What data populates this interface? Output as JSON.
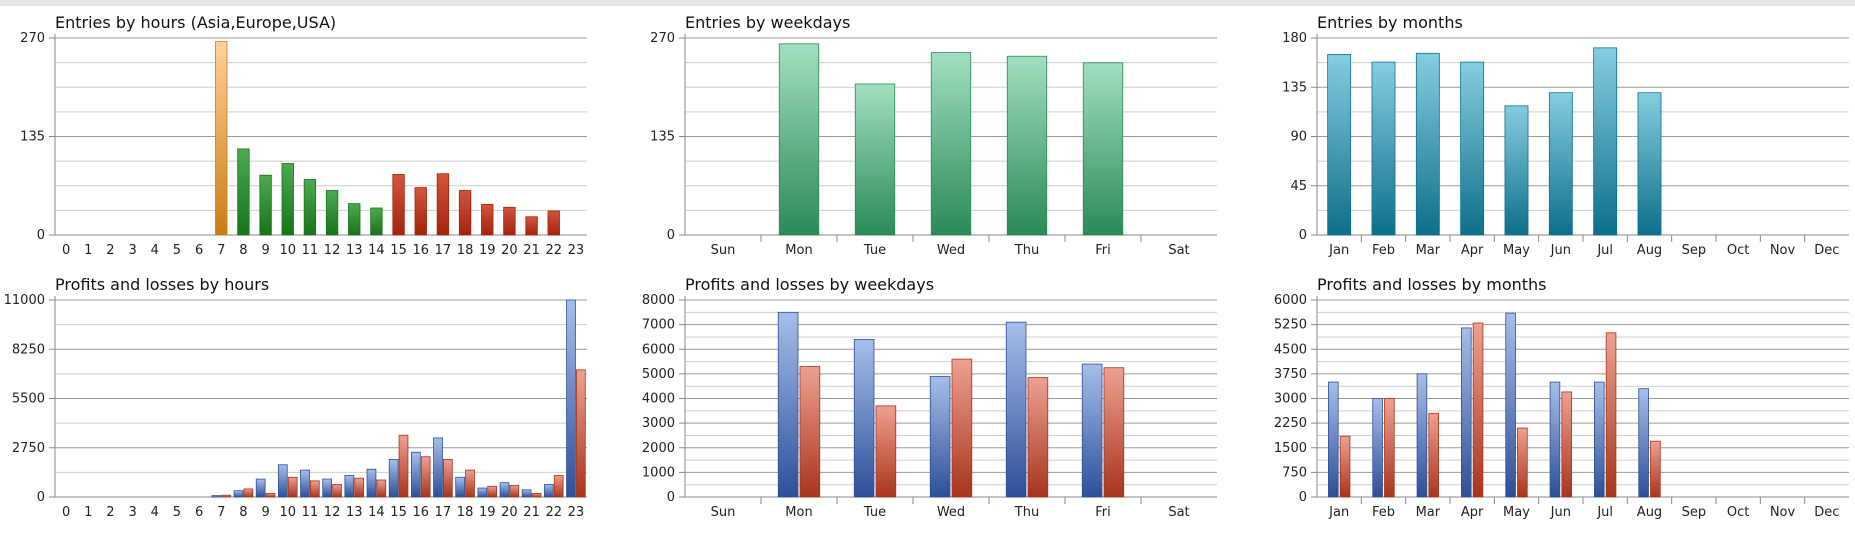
{
  "chart_data": [
    {
      "id": "entries-hours",
      "type": "bar",
      "title": "Entries by hours (Asia,Europe,USA)",
      "categories": [
        "0",
        "1",
        "2",
        "3",
        "4",
        "5",
        "6",
        "7",
        "8",
        "9",
        "10",
        "11",
        "12",
        "13",
        "14",
        "15",
        "16",
        "17",
        "18",
        "19",
        "20",
        "21",
        "22",
        "23"
      ],
      "values": [
        0,
        0,
        0,
        0,
        0,
        0,
        0,
        265,
        118,
        82,
        98,
        76,
        61,
        43,
        37,
        83,
        65,
        84,
        61,
        42,
        38,
        25,
        33,
        0
      ],
      "bar_colors": [
        "#b8751a",
        "#b8751a",
        "#b8751a",
        "#b8751a",
        "#b8751a",
        "#b8751a",
        "#b8751a",
        "#c97d14",
        "#197319",
        "#197319",
        "#197319",
        "#197319",
        "#197319",
        "#197319",
        "#197319",
        "#a3230d",
        "#a3230d",
        "#a3230d",
        "#a3230d",
        "#a3230d",
        "#a3230d",
        "#a3230d",
        "#a3230d",
        "#a3230d"
      ],
      "bar_tops": [
        "#f2b45a",
        "#f2b45a",
        "#f2b45a",
        "#f2b45a",
        "#f2b45a",
        "#f2b45a",
        "#f2b45a",
        "#ffd199",
        "#4eaa4e",
        "#4eaa4e",
        "#4eaa4e",
        "#4eaa4e",
        "#4eaa4e",
        "#4eaa4e",
        "#4eaa4e",
        "#d2553c",
        "#d2553c",
        "#d2553c",
        "#d2553c",
        "#d2553c",
        "#d2553c",
        "#d2553c",
        "#d2553c",
        "#d2553c"
      ],
      "ylim": [
        0,
        270
      ],
      "yticks": [
        0,
        135,
        270
      ],
      "grid": true
    },
    {
      "id": "entries-weekdays",
      "type": "bar",
      "title": "Entries by weekdays",
      "categories": [
        "Sun",
        "Mon",
        "Tue",
        "Wed",
        "Thu",
        "Fri",
        "Sat"
      ],
      "values": [
        0,
        262,
        207,
        250,
        245,
        236,
        0
      ],
      "color": "#2a8a57",
      "color_top": "#a2dfc0",
      "ylim": [
        0,
        270
      ],
      "yticks": [
        0,
        135,
        270
      ],
      "grid": true
    },
    {
      "id": "entries-months",
      "type": "bar",
      "title": "Entries by months",
      "categories": [
        "Jan",
        "Feb",
        "Mar",
        "Apr",
        "May",
        "Jun",
        "Jul",
        "Aug",
        "Sep",
        "Oct",
        "Nov",
        "Dec"
      ],
      "values": [
        165,
        158,
        166,
        158,
        118,
        130,
        171,
        130,
        0,
        0,
        0,
        0
      ],
      "color": "#0d6f8a",
      "color_top": "#86cde0",
      "ylim": [
        0,
        180
      ],
      "yticks": [
        0,
        45,
        90,
        135,
        180
      ],
      "grid": true
    },
    {
      "id": "pl-hours",
      "type": "bar",
      "title": "Profits and losses by hours",
      "categories": [
        "0",
        "1",
        "2",
        "3",
        "4",
        "5",
        "6",
        "7",
        "8",
        "9",
        "10",
        "11",
        "12",
        "13",
        "14",
        "15",
        "16",
        "17",
        "18",
        "19",
        "20",
        "21",
        "22",
        "23"
      ],
      "series": [
        {
          "values": [
            0,
            0,
            0,
            0,
            0,
            0,
            0,
            80,
            350,
            1000,
            1800,
            1500,
            1000,
            1200,
            1550,
            2100,
            2500,
            3300,
            1100,
            500,
            800,
            400,
            700,
            11000
          ]
        },
        {
          "values": [
            0,
            0,
            0,
            0,
            0,
            0,
            0,
            100,
            450,
            200,
            1100,
            900,
            700,
            1050,
            950,
            3450,
            2250,
            2100,
            1500,
            600,
            650,
            200,
            1200,
            7100
          ]
        }
      ],
      "series_colors": [
        "#2d4f98",
        "#a8341c"
      ],
      "series_tops": [
        "#a6bfea",
        "#eea191"
      ],
      "ylim": [
        0,
        11000
      ],
      "yticks": [
        0,
        2750,
        5500,
        8250,
        11000
      ],
      "grid": true
    },
    {
      "id": "pl-weekdays",
      "type": "bar",
      "title": "Profits and losses by weekdays",
      "categories": [
        "Sun",
        "Mon",
        "Tue",
        "Wed",
        "Thu",
        "Fri",
        "Sat"
      ],
      "series": [
        {
          "values": [
            0,
            7500,
            6400,
            4900,
            7100,
            5400,
            0
          ]
        },
        {
          "values": [
            0,
            5300,
            3700,
            5600,
            4850,
            5250,
            0
          ]
        }
      ],
      "series_colors": [
        "#2d4f98",
        "#a8341c"
      ],
      "series_tops": [
        "#a6bfea",
        "#eea191"
      ],
      "ylim": [
        0,
        8000
      ],
      "yticks": [
        0,
        1000,
        2000,
        3000,
        4000,
        5000,
        6000,
        7000,
        8000
      ],
      "grid": true
    },
    {
      "id": "pl-months",
      "type": "bar",
      "title": "Profits and losses by months",
      "categories": [
        "Jan",
        "Feb",
        "Mar",
        "Apr",
        "May",
        "Jun",
        "Jul",
        "Aug",
        "Sep",
        "Oct",
        "Nov",
        "Dec"
      ],
      "series": [
        {
          "values": [
            3500,
            3000,
            3750,
            5150,
            5600,
            3500,
            3500,
            3300,
            0,
            0,
            0,
            0
          ]
        },
        {
          "values": [
            1850,
            3000,
            2550,
            5300,
            2100,
            3200,
            5000,
            1700,
            0,
            0,
            0,
            0
          ]
        }
      ],
      "series_colors": [
        "#2d4f98",
        "#a8341c"
      ],
      "series_tops": [
        "#a6bfea",
        "#eea191"
      ],
      "ylim": [
        0,
        6000
      ],
      "yticks": [
        0,
        750,
        1500,
        2250,
        3000,
        3750,
        4500,
        5250,
        6000
      ],
      "grid": true
    }
  ]
}
